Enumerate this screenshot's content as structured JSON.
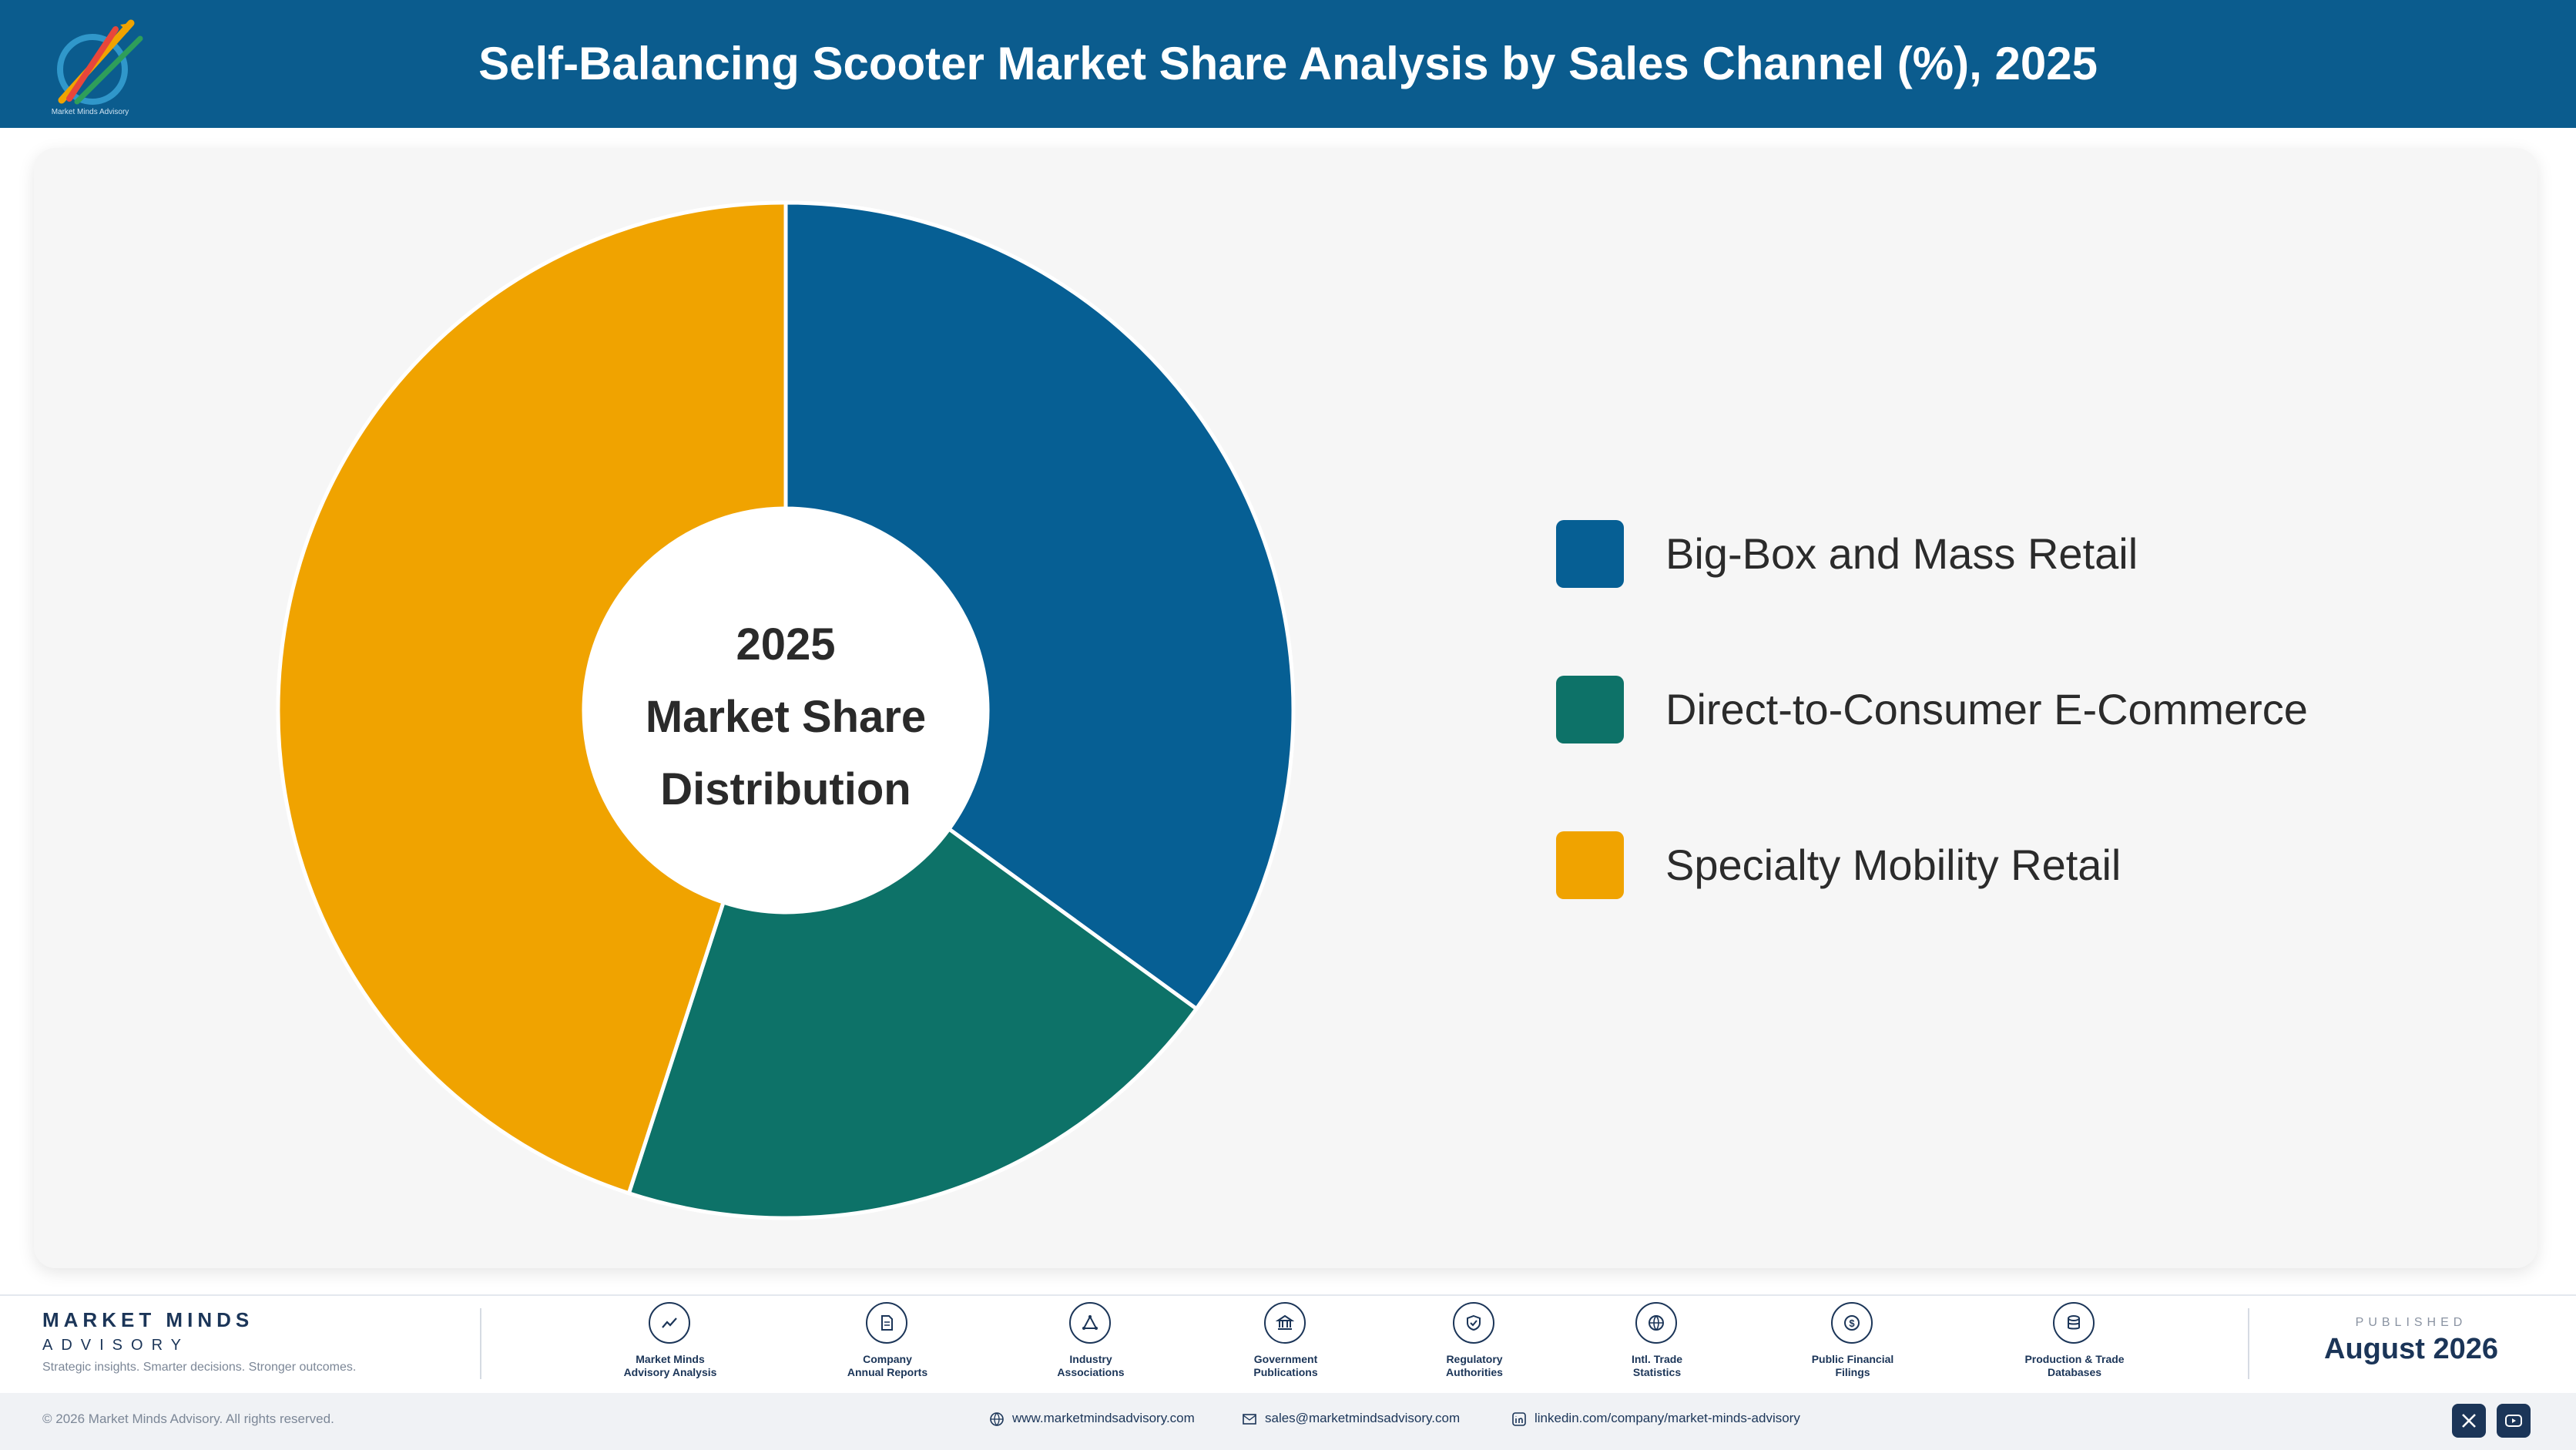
{
  "header": {
    "title": "Self-Balancing Scooter Market Share Analysis by Sales Channel (%), 2025",
    "logo_caption": "Market Minds Advisory",
    "background": "#0b5c8e"
  },
  "chart_data": {
    "type": "pie",
    "style": "donut",
    "center_label": [
      "2025",
      "Market Share",
      "Distribution"
    ],
    "categories": [
      "Big-Box and Mass Retail",
      "Direct-to-Consumer E-Commerce",
      "Specialty Mobility Retail"
    ],
    "values": [
      35,
      20,
      45
    ],
    "colors": [
      "#065f94",
      "#0d7268",
      "#f0a300"
    ],
    "start_angle_deg": 0,
    "direction": "clockwise",
    "legend_position": "right"
  },
  "legend": {
    "items": [
      {
        "label": "Big-Box and Mass Retail",
        "color": "#065f94"
      },
      {
        "label": "Direct-to-Consumer E-Commerce",
        "color": "#0d7268"
      },
      {
        "label": "Specialty Mobility Retail",
        "color": "#f0a300"
      }
    ]
  },
  "footer": {
    "brand_name": "MARKET MINDS",
    "brand_sub": "ADVISORY",
    "tagline": "Strategic insights. Smarter decisions. Stronger outcomes.",
    "sources": [
      {
        "line1": "Market Minds",
        "line2": "Advisory Analysis",
        "icon": "trend-chart-icon"
      },
      {
        "line1": "Company",
        "line2": "Annual Reports",
        "icon": "document-icon"
      },
      {
        "line1": "Industry",
        "line2": "Associations",
        "icon": "network-icon"
      },
      {
        "line1": "Government",
        "line2": "Publications",
        "icon": "government-building-icon"
      },
      {
        "line1": "Regulatory",
        "line2": "Authorities",
        "icon": "shield-check-icon"
      },
      {
        "line1": "Intl. Trade",
        "line2": "Statistics",
        "icon": "globe-icon"
      },
      {
        "line1": "Public Financial",
        "line2": "Filings",
        "icon": "dollar-coin-icon"
      },
      {
        "line1": "Production & Trade",
        "line2": "Databases",
        "icon": "database-icon"
      }
    ],
    "published_caption": "PUBLISHED",
    "published_date": "August 2026",
    "copyright": "© 2026 Market Minds Advisory. All rights reserved.",
    "website": "www.marketmindsadvisory.com",
    "email": "sales@marketmindsadvisory.com",
    "linkedin": "linkedin.com/company/market-minds-advisory",
    "social_icons": [
      "x-icon",
      "youtube-icon"
    ]
  }
}
